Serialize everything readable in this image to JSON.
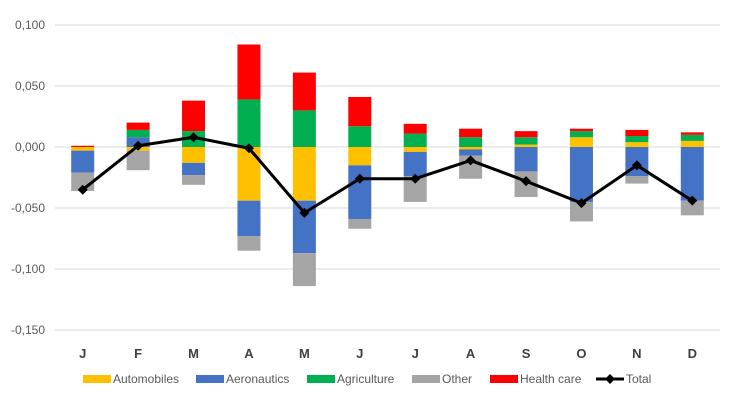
{
  "chart_data": {
    "type": "bar",
    "stacked": true,
    "categories": [
      "J",
      "F",
      "M",
      "A",
      "M",
      "J",
      "J",
      "A",
      "S",
      "O",
      "N",
      "D"
    ],
    "ylim": [
      -0.15,
      0.1
    ],
    "yticks": [
      0.1,
      0.05,
      0,
      -0.05,
      -0.1,
      -0.15
    ],
    "ytick_labels": [
      "0,100",
      "0,050",
      "0,000",
      "-0,050",
      "-0,100",
      "-0,150"
    ],
    "grid": true,
    "legend_position": "bottom",
    "series": [
      {
        "name": "Automobiles",
        "color": "#FFC000",
        "values": [
          -0.003,
          -0.003,
          -0.013,
          -0.044,
          -0.044,
          -0.015,
          -0.004,
          -0.002,
          0.002,
          0.008,
          0.004,
          0.005
        ]
      },
      {
        "name": "Aeronautics",
        "color": "#4472C4",
        "values": [
          -0.018,
          0.008,
          -0.01,
          -0.029,
          -0.043,
          -0.044,
          -0.02,
          -0.005,
          -0.02,
          -0.045,
          -0.024,
          -0.044
        ]
      },
      {
        "name": "Agriculture",
        "color": "#00B050",
        "values": [
          0,
          0.006,
          0.013,
          0.039,
          0.03,
          0.017,
          0.011,
          0.008,
          0.006,
          0.005,
          0.005,
          0.005
        ]
      },
      {
        "name": "Other",
        "color": "#A5A5A5",
        "values": [
          -0.015,
          -0.016,
          -0.008,
          -0.012,
          -0.027,
          -0.008,
          -0.021,
          -0.019,
          -0.021,
          -0.016,
          -0.006,
          -0.012
        ]
      },
      {
        "name": "Health care",
        "color": "#FF0000",
        "values": [
          0.001,
          0.006,
          0.025,
          0.045,
          0.031,
          0.024,
          0.008,
          0.007,
          0.005,
          0.002,
          0.005,
          0.002
        ]
      }
    ],
    "line_series": {
      "name": "Total",
      "color": "#000000",
      "values": [
        -0.035,
        0.001,
        0.008,
        -0.001,
        -0.054,
        -0.026,
        -0.026,
        -0.011,
        -0.028,
        -0.046,
        -0.015,
        -0.044
      ]
    }
  }
}
